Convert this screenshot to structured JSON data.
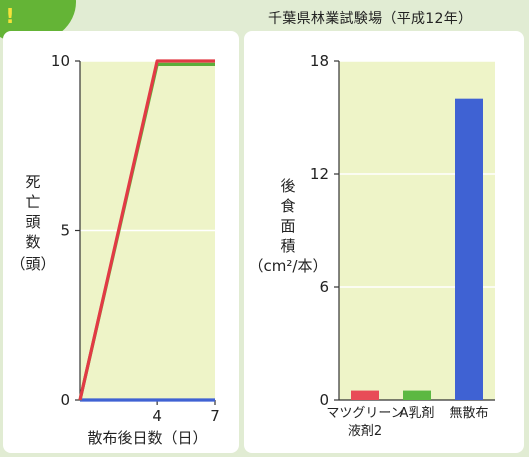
{
  "badge": {
    "text": "!"
  },
  "source_note": "千葉県林業試験場（平成12年）",
  "chart_data": [
    {
      "type": "line",
      "title": "",
      "xlabel": "散布後日数（日）",
      "ylabel_chars": [
        "死",
        "亡",
        "頭",
        "数",
        "（頭）"
      ],
      "x_ticks": [
        "4",
        "7"
      ],
      "y_ticks": [
        "0",
        "5",
        "10"
      ],
      "xlim": [
        0,
        7
      ],
      "ylim": [
        0,
        10
      ],
      "grid": true,
      "plot_bg": "#eef4c8",
      "series": [
        {
          "color": "#e23a45",
          "x": [
            0,
            4,
            7
          ],
          "y": [
            0,
            10,
            10
          ]
        },
        {
          "color": "#5cae3a",
          "x": [
            0,
            4,
            7
          ],
          "y": [
            0,
            9.9,
            9.9
          ]
        },
        {
          "color": "#3f62d3",
          "x": [
            0,
            4,
            7
          ],
          "y": [
            0,
            0,
            0
          ]
        }
      ]
    },
    {
      "type": "bar",
      "title": "",
      "ylabel_chars": [
        "後",
        "食",
        "面",
        "積"
      ],
      "ylabel_unit": "（cm²/本）",
      "categories": [
        [
          "マツグリーン",
          "液剤2"
        ],
        [
          "A乳剤"
        ],
        [
          "無散布"
        ]
      ],
      "values": [
        0.5,
        0.5,
        16
      ],
      "colors": [
        "#e84c57",
        "#5cb842",
        "#3f62d3"
      ],
      "y_ticks": [
        "0",
        "6",
        "12",
        "18"
      ],
      "ylim": [
        0,
        18
      ],
      "grid": true,
      "plot_bg": "#eef4c8"
    }
  ]
}
